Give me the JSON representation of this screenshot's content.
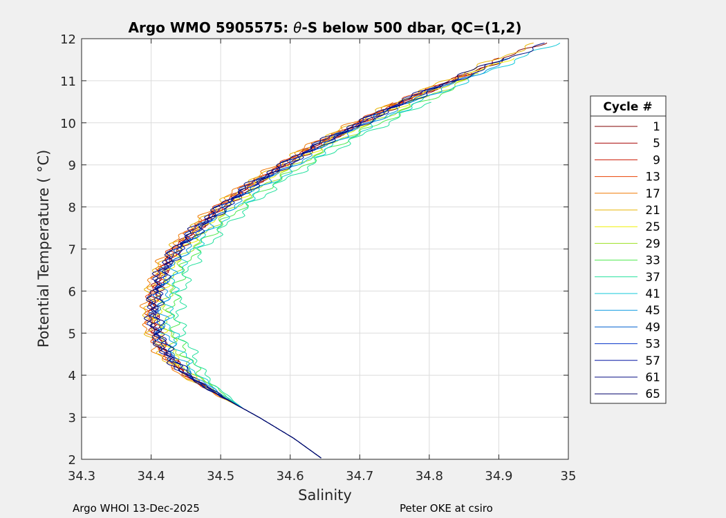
{
  "figure": {
    "title_prefix": "Argo WMO 5905575: ",
    "title_symbol": "θ",
    "title_suffix": "-S below 500 dbar,  QC=(1,2)",
    "footer_left": "Argo WHOI 13-Dec-2025",
    "footer_right": "Peter OKE at csiro"
  },
  "legend": {
    "title": "Cycle #",
    "entries": [
      {
        "label": "1",
        "color": "#800000"
      },
      {
        "label": "5",
        "color": "#a50000"
      },
      {
        "label": "9",
        "color": "#cc1400"
      },
      {
        "label": "13",
        "color": "#e84000"
      },
      {
        "label": "17",
        "color": "#f07800"
      },
      {
        "label": "21",
        "color": "#e8b400"
      },
      {
        "label": "25",
        "color": "#f0f000"
      },
      {
        "label": "29",
        "color": "#9ce020"
      },
      {
        "label": "33",
        "color": "#4ce84c"
      },
      {
        "label": "37",
        "color": "#20e09c"
      },
      {
        "label": "41",
        "color": "#10c8d8"
      },
      {
        "label": "45",
        "color": "#0898e0"
      },
      {
        "label": "49",
        "color": "#0060d0"
      },
      {
        "label": "53",
        "color": "#0030c8"
      },
      {
        "label": "57",
        "color": "#0010a0"
      },
      {
        "label": "61",
        "color": "#000a80"
      },
      {
        "label": "65",
        "color": "#00006a"
      }
    ]
  },
  "chart_data": {
    "type": "line",
    "title": "Argo WMO 5905575: θ-S below 500 dbar,  QC=(1,2)",
    "xlabel": "Salinity",
    "ylabel": "Potential Temperature ( °C)",
    "xlim": [
      34.3,
      35
    ],
    "ylim": [
      2,
      12
    ],
    "xticks": [
      34.3,
      34.4,
      34.5,
      34.6,
      34.7,
      34.8,
      34.9,
      35
    ],
    "yticks": [
      2,
      3,
      4,
      5,
      6,
      7,
      8,
      9,
      10,
      11,
      12
    ],
    "grid": true,
    "legend_position": "right-outside",
    "base_profile": {
      "theta": [
        2.0,
        2.5,
        3.0,
        3.5,
        4.0,
        4.5,
        5.0,
        5.5,
        6.0,
        6.5,
        7.0,
        7.5,
        8.0,
        8.5,
        9.0,
        9.5,
        10.0,
        10.5,
        11.0,
        11.5,
        11.9
      ],
      "salinity": [
        34.647,
        34.605,
        34.555,
        34.5,
        34.45,
        34.42,
        34.405,
        34.4,
        34.405,
        34.415,
        34.435,
        34.465,
        34.5,
        34.54,
        34.59,
        34.64,
        34.7,
        34.76,
        34.83,
        34.9,
        34.96
      ]
    },
    "series": [
      {
        "name": "1",
        "salinity_offset": 0.004
      },
      {
        "name": "5",
        "salinity_offset": 0.002
      },
      {
        "name": "9",
        "salinity_offset": 0.0
      },
      {
        "name": "13",
        "salinity_offset": -0.003
      },
      {
        "name": "17",
        "salinity_offset": -0.008
      },
      {
        "name": "21",
        "salinity_offset": -0.006
      },
      {
        "name": "25",
        "salinity_offset": 0.01
      },
      {
        "name": "29",
        "salinity_offset": 0.02
      },
      {
        "name": "33",
        "salinity_offset": 0.03
      },
      {
        "name": "37",
        "salinity_offset": 0.04
      },
      {
        "name": "41",
        "salinity_offset": 0.025
      },
      {
        "name": "45",
        "salinity_offset": 0.015
      },
      {
        "name": "49",
        "salinity_offset": 0.006
      },
      {
        "name": "53",
        "salinity_offset": 0.0
      },
      {
        "name": "57",
        "salinity_offset": 0.003
      },
      {
        "name": "61",
        "salinity_offset": 0.008
      },
      {
        "name": "65",
        "salinity_offset": -0.002
      }
    ]
  }
}
